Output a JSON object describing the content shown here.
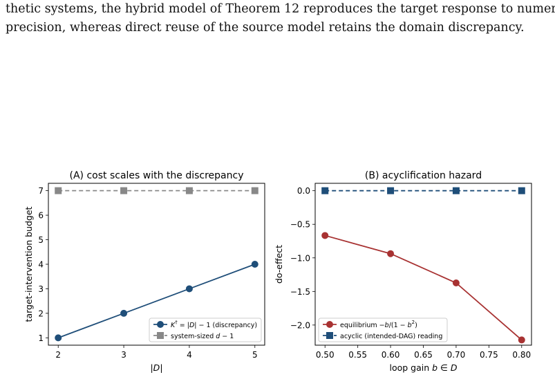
{
  "paper": {
    "line1": "thetic systems, the hybrid model of Theorem 12 reproduces the target response to numerical",
    "line2": "precision, whereas direct reuse of the source model retains the domain discrepancy."
  },
  "chart_data": [
    {
      "type": "line",
      "title": "(A) cost scales with the discrepancy",
      "xlabel": "|D|",
      "ylabel": "target-intervention budget",
      "x": [
        2,
        3,
        4,
        5
      ],
      "xticks": [
        "2",
        "3",
        "4",
        "5"
      ],
      "yticks": [
        "1",
        "2",
        "3",
        "4",
        "5",
        "6",
        "7"
      ],
      "xlim": [
        1.85,
        5.15
      ],
      "ylim": [
        0.7,
        7.3
      ],
      "grid": false,
      "legend_position": "lower-right",
      "series": [
        {
          "name": "K† = |D| − 1 (discrepancy)",
          "values": [
            1,
            2,
            3,
            4
          ],
          "color": "#1f4e79",
          "marker": "circle",
          "linestyle": "solid"
        },
        {
          "name": "system-sized d − 1",
          "values": [
            7,
            7,
            7,
            7
          ],
          "color": "#888888",
          "marker": "square",
          "linestyle": "dashed"
        }
      ]
    },
    {
      "type": "line",
      "title": "(B) acyclification hazard",
      "xlabel": "loop gain b ∈ D",
      "ylabel": "do-effect",
      "x": [
        0.5,
        0.6,
        0.7,
        0.8
      ],
      "xticks": [
        "0.50",
        "0.55",
        "0.60",
        "0.65",
        "0.70",
        "0.75",
        "0.80"
      ],
      "yticks": [
        "0.0",
        "−0.5",
        "−1.0",
        "−1.5",
        "−2.0"
      ],
      "xlim": [
        0.485,
        0.815
      ],
      "ylim": [
        -2.3,
        0.11
      ],
      "grid": false,
      "legend_position": "lower-left",
      "series": [
        {
          "name": "equilibrium −b/(1 − b²)",
          "values": [
            -0.667,
            -0.9375,
            -1.373,
            -2.222
          ],
          "color": "#a83232",
          "marker": "circle",
          "linestyle": "solid"
        },
        {
          "name": "acyclic (intended-DAG) reading",
          "values": [
            0,
            0,
            0,
            0
          ],
          "color": "#1f4e79",
          "marker": "square",
          "linestyle": "dashed"
        }
      ]
    }
  ]
}
